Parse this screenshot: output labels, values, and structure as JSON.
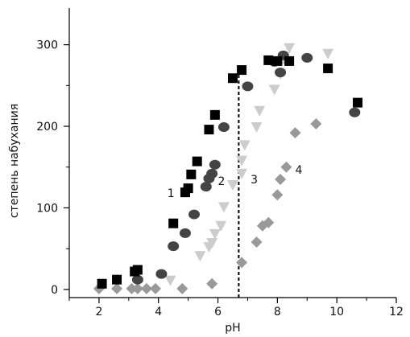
{
  "chart_data": {
    "type": "scatter",
    "xlabel": "pH",
    "ylabel": "степень набухания",
    "xlim": [
      1,
      12
    ],
    "ylim": [
      -10,
      345
    ],
    "xticks": [
      2,
      4,
      6,
      8,
      10,
      12
    ],
    "yticks": [
      0,
      100,
      200,
      300
    ],
    "grid": false,
    "reference_line": {
      "x": 6.7,
      "style": "dashed",
      "color": "#000000"
    },
    "series": [
      {
        "label": "1",
        "label_pos": [
          4.3,
          118
        ],
        "marker": "square",
        "color": "#000000",
        "points": [
          [
            2.1,
            7
          ],
          [
            2.6,
            12
          ],
          [
            3.2,
            22
          ],
          [
            3.3,
            24
          ],
          [
            4.5,
            81
          ],
          [
            4.9,
            119
          ],
          [
            5.0,
            124
          ],
          [
            5.1,
            141
          ],
          [
            5.3,
            157
          ],
          [
            5.7,
            196
          ],
          [
            5.9,
            214
          ],
          [
            6.5,
            259
          ],
          [
            6.8,
            269
          ],
          [
            7.7,
            281
          ],
          [
            8.0,
            280
          ],
          [
            8.4,
            280
          ],
          [
            9.7,
            271
          ],
          [
            10.7,
            229
          ]
        ]
      },
      {
        "label": "2",
        "label_pos": [
          6.0,
          133
        ],
        "marker": "circle",
        "color": "#444444",
        "points": [
          [
            3.3,
            12
          ],
          [
            4.1,
            19
          ],
          [
            4.5,
            53
          ],
          [
            4.9,
            69
          ],
          [
            5.2,
            92
          ],
          [
            5.6,
            126
          ],
          [
            5.7,
            136
          ],
          [
            5.8,
            142
          ],
          [
            5.9,
            153
          ],
          [
            6.2,
            199
          ],
          [
            7.0,
            249
          ],
          [
            7.9,
            279
          ],
          [
            8.1,
            266
          ],
          [
            8.2,
            287
          ],
          [
            9.0,
            284
          ],
          [
            10.6,
            217
          ]
        ]
      },
      {
        "label": "3",
        "label_pos": [
          7.1,
          135
        ],
        "marker": "triangle-down",
        "color": "#cccccc",
        "points": [
          [
            4.4,
            11
          ],
          [
            5.4,
            41
          ],
          [
            5.7,
            52
          ],
          [
            5.8,
            57
          ],
          [
            5.9,
            68
          ],
          [
            6.1,
            78
          ],
          [
            6.2,
            101
          ],
          [
            6.5,
            128
          ],
          [
            6.8,
            142
          ],
          [
            6.8,
            158
          ],
          [
            6.9,
            177
          ],
          [
            7.3,
            199
          ],
          [
            7.4,
            219
          ],
          [
            7.9,
            245
          ],
          [
            8.1,
            264
          ],
          [
            8.2,
            282
          ],
          [
            8.4,
            296
          ],
          [
            9.7,
            289
          ]
        ]
      },
      {
        "label": "4",
        "label_pos": [
          8.6,
          147
        ],
        "marker": "diamond",
        "color": "#999999",
        "points": [
          [
            2.0,
            1
          ],
          [
            2.6,
            1
          ],
          [
            3.1,
            1
          ],
          [
            3.3,
            1
          ],
          [
            3.6,
            1
          ],
          [
            3.9,
            1
          ],
          [
            4.8,
            1
          ],
          [
            5.8,
            7
          ],
          [
            6.8,
            33
          ],
          [
            7.3,
            58
          ],
          [
            7.5,
            78
          ],
          [
            7.7,
            82
          ],
          [
            8.0,
            116
          ],
          [
            8.1,
            135
          ],
          [
            8.3,
            150
          ],
          [
            8.6,
            192
          ],
          [
            9.3,
            203
          ]
        ]
      }
    ]
  }
}
